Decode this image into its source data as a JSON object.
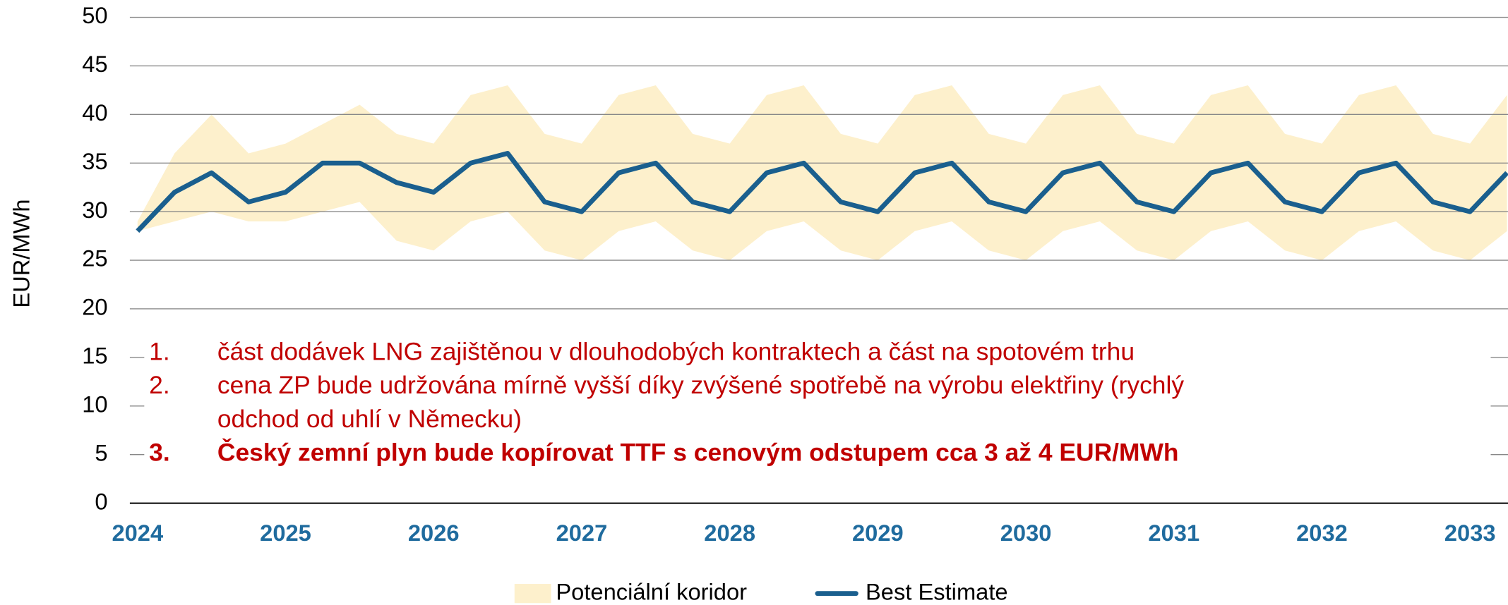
{
  "chart_data": {
    "type": "line",
    "y_label": "EUR/MWh",
    "x": [
      2024,
      2024.25,
      2024.5,
      2024.75,
      2025,
      2025.25,
      2025.5,
      2025.75,
      2026,
      2026.25,
      2026.5,
      2026.75,
      2027,
      2027.25,
      2027.5,
      2027.75,
      2028,
      2028.25,
      2028.5,
      2028.75,
      2029,
      2029.25,
      2029.5,
      2029.75,
      2030,
      2030.25,
      2030.5,
      2030.75,
      2031,
      2031.25,
      2031.5,
      2031.75,
      2032,
      2032.25,
      2032.5,
      2032.75,
      2033,
      2033.25
    ],
    "xlim": [
      2024,
      2033.25
    ],
    "xticks": [
      2024,
      2025,
      2026,
      2027,
      2028,
      2029,
      2030,
      2031,
      2032,
      2033
    ],
    "ylim": [
      0,
      50
    ],
    "yticks": [
      0,
      5,
      10,
      15,
      20,
      25,
      30,
      35,
      40,
      45,
      50
    ],
    "grid": true,
    "series": [
      {
        "name": "Potenciální koridor",
        "type": "band",
        "color": "#fdf0cc",
        "upper": [
          29,
          36,
          40,
          36,
          37,
          39,
          41,
          38,
          37,
          42,
          43,
          38,
          37,
          42,
          43,
          38,
          37,
          42,
          43,
          38,
          37,
          42,
          43,
          38,
          37,
          42,
          43,
          38,
          37,
          42,
          43,
          38,
          37,
          42,
          43,
          38,
          37,
          42
        ],
        "lower": [
          28,
          29,
          30,
          29,
          29,
          30,
          31,
          27,
          26,
          29,
          30,
          26,
          25,
          28,
          29,
          26,
          25,
          28,
          29,
          26,
          25,
          28,
          29,
          26,
          25,
          28,
          29,
          26,
          25,
          28,
          29,
          26,
          25,
          28,
          29,
          26,
          25,
          28
        ]
      },
      {
        "name": "Best Estimate",
        "color": "#1a5f8e",
        "values": [
          28,
          32,
          34,
          31,
          32,
          35,
          35,
          33,
          32,
          35,
          36,
          31,
          30,
          34,
          35,
          31,
          30,
          34,
          35,
          31,
          30,
          34,
          35,
          31,
          30,
          34,
          35,
          31,
          30,
          34,
          35,
          31,
          30,
          34,
          35,
          31,
          30,
          34
        ]
      }
    ],
    "legend": "bottom",
    "annotations": [
      {
        "marker": "1.",
        "lines": [
          "část dodávek LNG zajištěnou v dlouhodobých kontraktech a část na spotovém trhu"
        ],
        "bold": false
      },
      {
        "marker": "2.",
        "lines": [
          "cena ZP bude udržována mírně vyšší díky zvýšené spotřebě na výrobu elektřiny (rychlý",
          "odchod od uhlí v Německu)"
        ],
        "bold": false
      },
      {
        "marker": "3.",
        "lines": [
          "Český zemní plyn bude kopírovat TTF s cenovým odstupem cca 3 až 4 EUR/MWh"
        ],
        "bold": true
      }
    ]
  }
}
